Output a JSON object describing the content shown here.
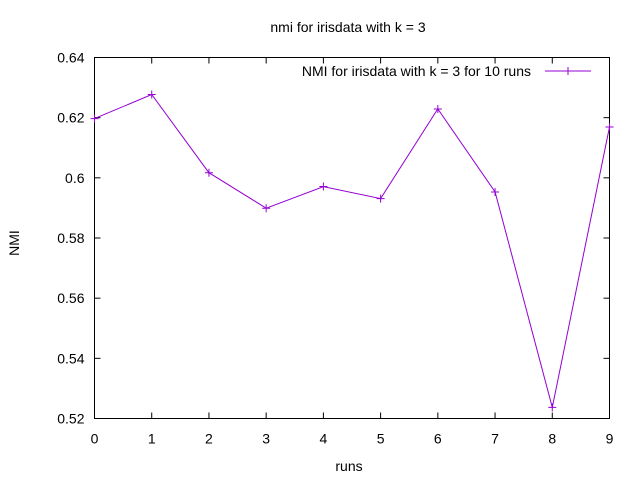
{
  "chart_data": {
    "type": "line",
    "title": "nmi for irisdata with k = 3",
    "xlabel": "runs",
    "ylabel": "NMI",
    "xlim": [
      0,
      9
    ],
    "ylim": [
      0.52,
      0.64
    ],
    "xticks": [
      "0",
      "1",
      "2",
      "3",
      "4",
      "5",
      "6",
      "7",
      "8",
      "9"
    ],
    "yticks": [
      "0.52",
      "0.54",
      "0.56",
      "0.58",
      "0.6",
      "0.62",
      "0.64"
    ],
    "grid": false,
    "legend_position": "top-right",
    "series": [
      {
        "name": "NMI for irisdata with k = 3 for 10 runs",
        "color": "#9400d3",
        "marker": "plus",
        "x": [
          0,
          1,
          2,
          3,
          4,
          5,
          6,
          7,
          8,
          9
        ],
        "y": [
          0.6197,
          0.6277,
          0.6017,
          0.5899,
          0.5971,
          0.5931,
          0.6229,
          0.5953,
          0.5237,
          0.6169
        ]
      }
    ]
  }
}
